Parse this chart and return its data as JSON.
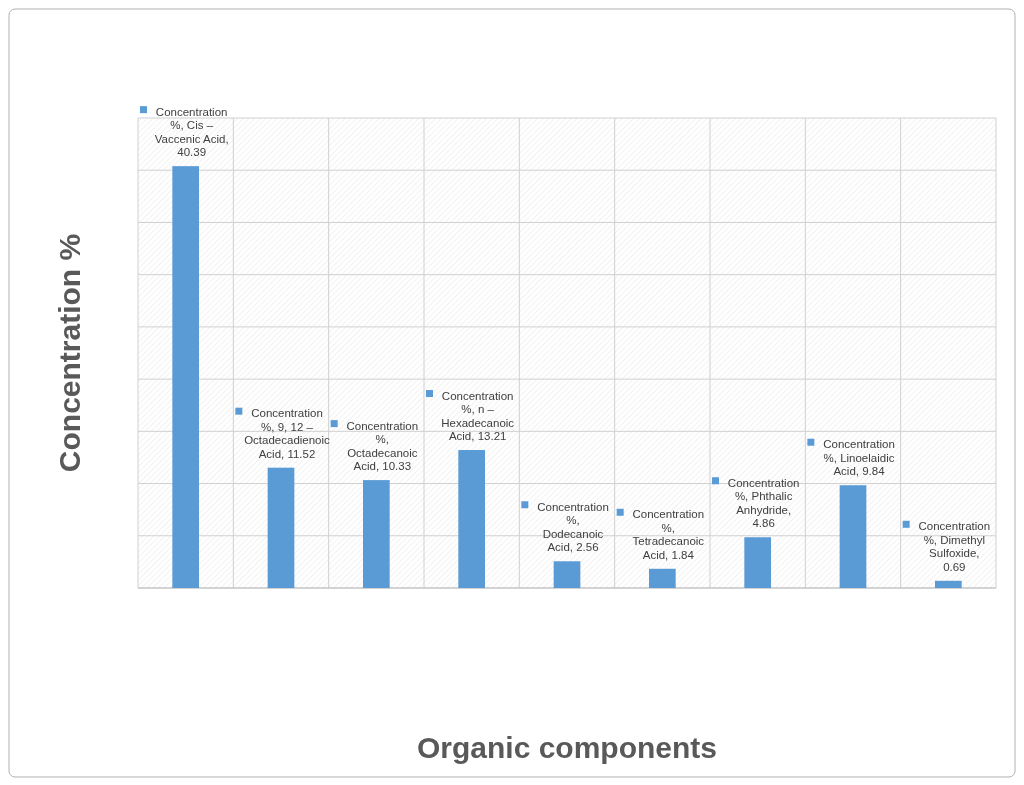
{
  "chart_data": {
    "type": "bar",
    "xlabel": "Organic components",
    "ylabel": "Concentration %",
    "categories": [
      null,
      null,
      null,
      null,
      null,
      null,
      null,
      null,
      null
    ],
    "values": [
      40.39,
      11.52,
      10.33,
      13.21,
      2.56,
      1.84,
      4.86,
      9.84,
      0.69
    ],
    "color": "#5b9bd5",
    "value_labels": [
      "Concentration %, Cis – Vaccenic Acid, 40.39",
      "Concentration %, 9, 12 – Octadecadienoic Acid, 11.52",
      "Concentration %, Octadecanoic Acid, 10.33",
      "Concentration %, n – Hexadecanoic Acid, 13.21",
      "Concentration %, Dodecanoic Acid, 2.56",
      "Concentration %, Tetradecanoic Acid, 1.84",
      "Concentration %, Phthalic Anhydride, 4.86",
      "Concentration %, Linoelaidic Acid, 9.84",
      "Concentration %, Dimethyl Sulfoxide, 0.69"
    ],
    "ylim": [
      0,
      45
    ],
    "yticks": [
      {
        "value": 0,
        "label": null
      },
      {
        "value": 5,
        "label": null
      },
      {
        "value": 10,
        "label": null
      },
      {
        "value": 15,
        "label": null
      },
      {
        "value": 20,
        "label": null
      },
      {
        "value": 25,
        "label": null
      },
      {
        "value": 30,
        "label": null
      },
      {
        "value": 35,
        "label": null
      },
      {
        "value": 40,
        "label": null
      },
      {
        "value": 45,
        "label": null
      }
    ],
    "grid": true
  }
}
